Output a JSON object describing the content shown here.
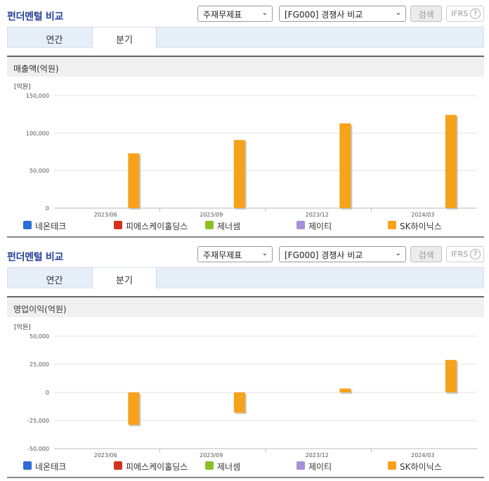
{
  "panels": [
    {
      "title": "펀더멘털 비교",
      "select1": "주재무제표",
      "select2": "[FG000] 경쟁사 비교",
      "search_label": "검색",
      "ifrs_label": "IFRS",
      "tabs": [
        "연간",
        "분기"
      ],
      "subheading": "매출액(억원)",
      "legend": [
        "네온테크",
        "피에스케이홀딩스",
        "제너셈",
        "제이티",
        "SK하이닉스"
      ]
    },
    {
      "title": "펀더멘털 비교",
      "select1": "주재무제표",
      "select2": "[FG000] 경쟁사 비교",
      "search_label": "검색",
      "ifrs_label": "IFRS",
      "tabs": [
        "연간",
        "분기"
      ],
      "subheading": "영업이익(억원)",
      "legend": [
        "네온테크",
        "피에스케이홀딩스",
        "제너셈",
        "제이티",
        "SK하이닉스"
      ]
    }
  ],
  "legend_colors": [
    "#2c6cd4",
    "#d0321d",
    "#8cbf26",
    "#a98fd8",
    "#f7a21b"
  ],
  "chart_data": [
    {
      "type": "bar",
      "ylabel": "[억원]",
      "categories": [
        "2023/06",
        "2023/09",
        "2023/12",
        "2024/03"
      ],
      "ylim": [
        0,
        150000
      ],
      "yticks": [
        0,
        50000,
        100000,
        150000
      ],
      "ytick_labels": [
        "0",
        "50,000",
        "100,000",
        "150,000"
      ],
      "series": [
        {
          "name": "SK하이닉스",
          "values": [
            73059,
            90834,
            113055,
            124296
          ]
        }
      ]
    },
    {
      "type": "bar",
      "ylabel": "[억원]",
      "categories": [
        "2023/06",
        "2023/09",
        "2023/12",
        "2024/03"
      ],
      "ylim": [
        -50000,
        50000
      ],
      "yticks": [
        -50000,
        -25000,
        0,
        25000,
        50000
      ],
      "ytick_labels": [
        "-50,000",
        "-25,000",
        "0",
        "25,000",
        "50,000"
      ],
      "series": [
        {
          "name": "SK하이닉스",
          "values": [
            -28821,
            -17920,
            3460,
            28860
          ]
        }
      ]
    }
  ]
}
